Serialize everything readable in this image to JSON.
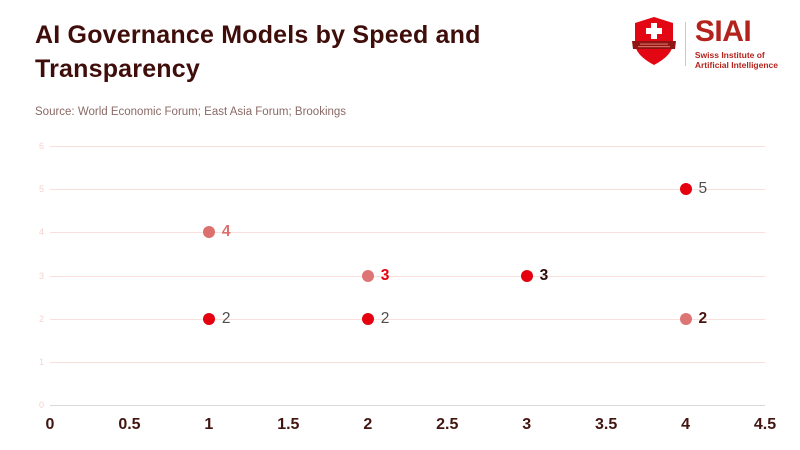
{
  "header": {
    "title": "AI Governance Models by Speed and Transparency",
    "source": "Source: World Economic Forum; East Asia Forum; Brookings"
  },
  "logo": {
    "acronym": "SIAI",
    "subtitle_line1": "Swiss Institute of",
    "subtitle_line2": "Artificial Intelligence",
    "shield_icon": "swiss-shield-cross",
    "brand_color": "#b3231c",
    "shield_color": "#e30613"
  },
  "chart_data": {
    "type": "scatter",
    "title": "AI Governance Models by Speed and Transparency",
    "source": "Source: World Economic Forum; East Asia Forum; Brookings",
    "xlabel": "",
    "ylabel": "",
    "xlim": [
      0,
      4.5
    ],
    "ylim": [
      0,
      6
    ],
    "x_ticks": [
      "0",
      "0.5",
      "1",
      "1.5",
      "2",
      "2.5",
      "3",
      "3.5",
      "4",
      "4.5"
    ],
    "y_ticks": [
      "0",
      "1",
      "2",
      "3",
      "4",
      "5",
      "6"
    ],
    "grid": true,
    "legend": "none",
    "points": [
      {
        "x": 1,
        "y": 4,
        "label": "4",
        "dot_color": "#dd6f6f",
        "label_color": "#dd6f6f",
        "label_bold": true
      },
      {
        "x": 2,
        "y": 3,
        "label": "3",
        "dot_color": "#dd7575",
        "label_color": "#e4000f",
        "label_bold": true
      },
      {
        "x": 3,
        "y": 3,
        "label": "3",
        "dot_color": "#e4000f",
        "label_color": "#2f0c0c",
        "label_bold": true
      },
      {
        "x": 4,
        "y": 5,
        "label": "5",
        "dot_color": "#e4000f",
        "label_color": "#4f4f4f",
        "label_bold": false
      },
      {
        "x": 1,
        "y": 2,
        "label": "2",
        "dot_color": "#e4000f",
        "label_color": "#4f4f4f",
        "label_bold": false
      },
      {
        "x": 2,
        "y": 2,
        "label": "2",
        "dot_color": "#e4000f",
        "label_color": "#4f4f4f",
        "label_bold": false
      },
      {
        "x": 4,
        "y": 2,
        "label": "2",
        "dot_color": "#dd7575",
        "label_color": "#4a1410",
        "label_bold": true
      }
    ],
    "colors": {
      "grid_line": "#fae0dc",
      "zero_line": "#d9d9d9",
      "y_tick_label": "#f5d3cf",
      "x_tick_label": "#421511"
    }
  }
}
